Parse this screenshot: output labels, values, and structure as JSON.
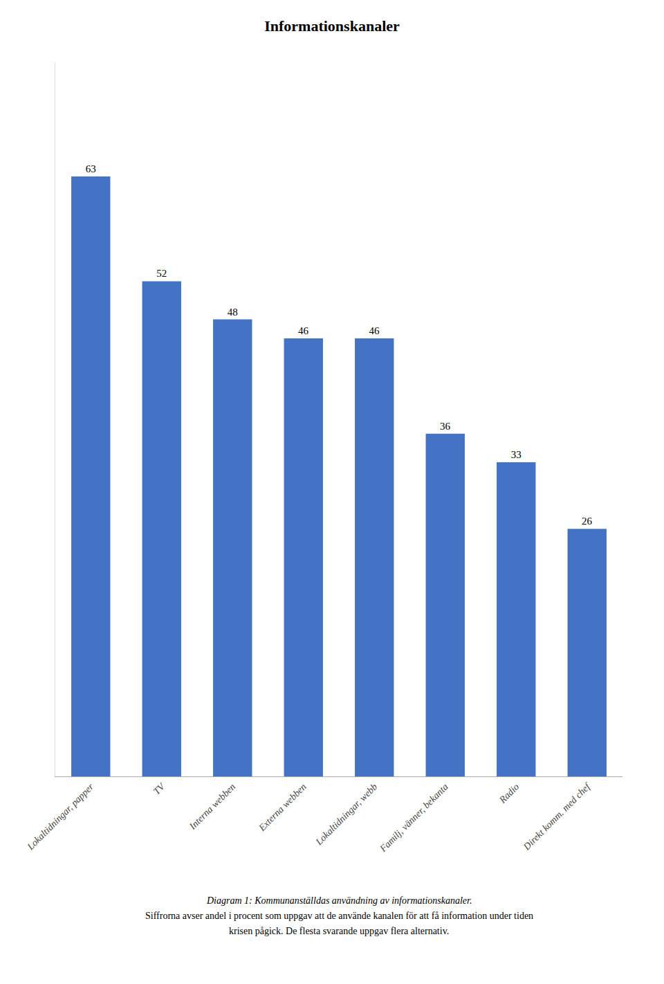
{
  "chart_data": {
    "type": "bar",
    "title": "Informationskanaler",
    "categories": [
      "Lokaltidningar, papper",
      "TV",
      "Interna webben",
      "Externa webben",
      "Lokaltidningar, webb",
      "Familj, vänner, bekanta",
      "Radio",
      "Direkt komm. med chef"
    ],
    "values": [
      63,
      52,
      48,
      46,
      46,
      36,
      33,
      26
    ],
    "color": "#4472C4",
    "ylim": [
      0,
      75
    ],
    "grid": false,
    "data_labels": true,
    "tick_labels": "x",
    "annotations": [
      "Diagram 1: Kommunanställdas användning av informationskanaler.",
      "Siffrorna avser andel i procent som uppgav att de använde kanalen för att få information under tiden",
      "krisen pågick. De flesta svarande uppgav flera alternativ."
    ]
  }
}
